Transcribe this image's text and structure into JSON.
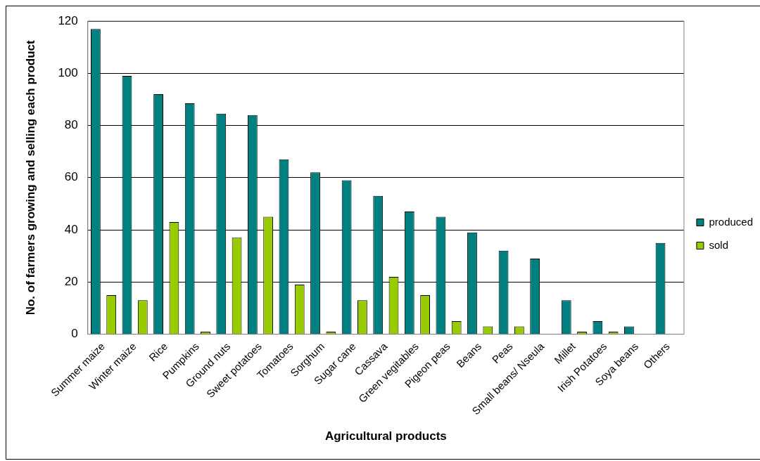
{
  "chart_data": {
    "type": "bar",
    "xlabel": "Agricultural products",
    "ylabel": "No. of farmers growing and selling each product",
    "categories": [
      "Summer maize",
      "Winter maize",
      "Rice",
      "Pumpkins",
      "Ground nuts",
      "Sweet potatoes",
      "Tomatoes",
      "Sorghum",
      "Sugar cane",
      "Cassava",
      "Green vegitables",
      "Pigeon peas",
      "Beans",
      "Peas",
      "Small beans/ Nseula",
      "Millet",
      "Irish Potatoes",
      "Soya beans",
      "Others"
    ],
    "series": [
      {
        "name": "produced",
        "color": "#008080",
        "values": [
          117,
          99,
          92,
          88.5,
          84.5,
          84,
          67,
          62,
          59,
          53,
          47,
          45,
          39,
          32,
          29,
          13,
          5,
          3,
          35
        ]
      },
      {
        "name": "sold",
        "color": "#99cc00",
        "values": [
          15,
          13,
          43,
          1,
          37,
          45,
          19,
          1,
          13,
          22,
          15,
          5,
          3,
          3,
          0,
          1,
          1,
          0,
          0
        ]
      }
    ],
    "ylim": [
      0,
      120
    ],
    "yticks": [
      0,
      20,
      40,
      60,
      80,
      100,
      120
    ],
    "grid": "y",
    "legend": "right"
  }
}
